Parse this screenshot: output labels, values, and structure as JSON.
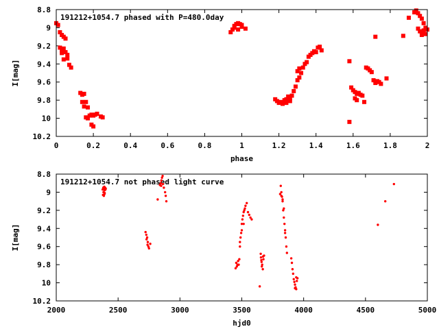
{
  "chart_data": [
    {
      "type": "scatter",
      "title": "191212+1054.7 phased with P=480.0day",
      "xlabel": "phase",
      "ylabel": "I[mag]",
      "xlim": [
        0,
        2
      ],
      "ylim": [
        10.2,
        8.8
      ],
      "y_inverted": true,
      "grid": false,
      "legend": "none",
      "marker_color": "#ff0000",
      "marker": "filled-square",
      "xticks": [
        "0",
        "0.2",
        "0.4",
        "0.6",
        "0.8",
        "1",
        "1.2",
        "1.4",
        "1.6",
        "1.8",
        "2"
      ],
      "xtick_values": [
        0,
        0.2,
        0.4,
        0.6,
        0.8,
        1.0,
        1.2,
        1.4,
        1.6,
        1.8,
        2.0
      ],
      "yticks": [
        "8.8",
        "9",
        "9.2",
        "9.4",
        "9.6",
        "9.8",
        "10",
        "10.2"
      ],
      "ytick_values": [
        8.8,
        9.0,
        9.2,
        9.4,
        9.6,
        9.8,
        10.0,
        10.2
      ],
      "series": [
        {
          "x": [
            0.0,
            0.01,
            0.02,
            0.03,
            0.04,
            0.05,
            0.02,
            0.03,
            0.04,
            0.05,
            0.06,
            0.03,
            0.04,
            0.06,
            0.07,
            0.08,
            0.13,
            0.14,
            0.15,
            0.14,
            0.16,
            0.15,
            0.17,
            0.16,
            0.18,
            0.17,
            0.19,
            0.2,
            0.21,
            0.22,
            0.24,
            0.25,
            0.19,
            0.2,
            0.17,
            0.94,
            0.95,
            0.96,
            0.97,
            0.98,
            0.99,
            1.0,
            1.02,
            0.96,
            0.98,
            1.0,
            1.18,
            1.19,
            1.2,
            1.21,
            1.22,
            1.23,
            1.24,
            1.25,
            1.26,
            1.27,
            1.22,
            1.24,
            1.26,
            1.28,
            1.29,
            1.3,
            1.31,
            1.32,
            1.33,
            1.34,
            1.35,
            1.36,
            1.37,
            1.3,
            1.31,
            1.38,
            1.39,
            1.4,
            1.41,
            1.42,
            1.43,
            1.58,
            1.59,
            1.6,
            1.61,
            1.62,
            1.63,
            1.64,
            1.65,
            1.61,
            1.62,
            1.66,
            1.67,
            1.68,
            1.69,
            1.7,
            1.71,
            1.72,
            1.73,
            1.74,
            1.75,
            1.78,
            1.72,
            1.58,
            1.87,
            1.9,
            1.93,
            1.94,
            1.95,
            1.96,
            1.97,
            1.98,
            1.99,
            2.0,
            1.95,
            1.96,
            1.97,
            1.98,
            1.99,
            1.97,
            1.98
          ],
          "y": [
            8.95,
            8.97,
            9.05,
            9.08,
            9.1,
            9.12,
            9.22,
            9.25,
            9.23,
            9.27,
            9.3,
            9.28,
            9.35,
            9.34,
            9.41,
            9.44,
            9.72,
            9.74,
            9.73,
            9.82,
            9.82,
            9.87,
            9.88,
            9.99,
            9.97,
            10.0,
            9.96,
            9.97,
            9.96,
            9.95,
            9.98,
            9.99,
            10.07,
            10.09,
            10.0,
            9.05,
            9.02,
            8.98,
            8.96,
            8.95,
            8.96,
            8.97,
            9.01,
            9.0,
            9.02,
            8.99,
            9.79,
            9.81,
            9.83,
            9.82,
            9.84,
            9.8,
            9.79,
            9.76,
            9.78,
            9.75,
            9.84,
            9.83,
            9.81,
            9.7,
            9.65,
            9.58,
            9.55,
            9.5,
            9.44,
            9.4,
            9.38,
            9.32,
            9.3,
            9.48,
            9.45,
            9.28,
            9.26,
            9.27,
            9.22,
            9.21,
            9.25,
            9.37,
            9.66,
            9.69,
            9.71,
            9.73,
            9.72,
            9.74,
            9.75,
            9.78,
            9.8,
            9.82,
            9.44,
            9.45,
            9.47,
            9.49,
            9.58,
            9.61,
            9.59,
            9.6,
            9.62,
            9.56,
            9.1,
            10.04,
            9.09,
            8.89,
            8.83,
            8.81,
            8.84,
            8.87,
            8.9,
            8.95,
            9.0,
            9.02,
            9.01,
            9.04,
            9.05,
            9.06,
            9.07,
            9.08,
            9.03
          ]
        }
      ]
    },
    {
      "type": "scatter",
      "title": "191212+1054.7 not phased light curve",
      "xlabel": "hjd0",
      "ylabel": "I[mag]",
      "xlim": [
        2000,
        5000
      ],
      "ylim": [
        10.2,
        8.8
      ],
      "y_inverted": true,
      "grid": false,
      "legend": "none",
      "marker_color": "#ff0000",
      "marker": "small-dot",
      "xticks": [
        "2000",
        "2500",
        "3000",
        "3500",
        "4000",
        "4500",
        "5000"
      ],
      "xtick_values": [
        2000,
        2500,
        3000,
        3500,
        4000,
        4500,
        5000
      ],
      "yticks": [
        "8.8",
        "9",
        "9.2",
        "9.4",
        "9.6",
        "9.8",
        "10",
        "10.2"
      ],
      "ytick_values": [
        8.8,
        9.0,
        9.2,
        9.4,
        9.6,
        9.8,
        10.0,
        10.2
      ],
      "series": [
        {
          "x": [
            2375,
            2380,
            2382,
            2385,
            2388,
            2390,
            2392,
            2395,
            2398,
            2400,
            2385,
            2390,
            2378,
            2722,
            2728,
            2735,
            2740,
            2745,
            2750,
            2760,
            2730,
            2738,
            2820,
            2838,
            2845,
            2850,
            2855,
            2860,
            2870,
            2880,
            2885,
            2890,
            2848,
            2862,
            3450,
            3460,
            3465,
            3470,
            3475,
            3480,
            3485,
            3490,
            3495,
            3500,
            3505,
            3510,
            3515,
            3520,
            3525,
            3530,
            3540,
            3550,
            3560,
            3570,
            3580,
            3455,
            3470,
            3485,
            3500,
            3515,
            3653,
            3655,
            3658,
            3660,
            3665,
            3670,
            3675,
            3680,
            3662,
            3672,
            3645,
            3810,
            3815,
            3820,
            3825,
            3830,
            3835,
            3840,
            3845,
            3850,
            3855,
            3860,
            3865,
            3820,
            3830,
            3840,
            3850,
            3900,
            3905,
            3910,
            3915,
            3920,
            3925,
            3930,
            3935,
            3940,
            3945,
            3950,
            3930,
            3940,
            4600,
            4660,
            4730
          ],
          "y": [
            8.97,
            8.95,
            9.0,
            8.96,
            8.94,
            8.98,
            9.01,
            8.95,
            8.97,
            8.96,
            9.04,
            9.02,
            9.03,
            9.44,
            9.47,
            9.5,
            9.55,
            9.6,
            9.62,
            9.57,
            9.52,
            9.58,
            9.08,
            8.92,
            8.9,
            8.87,
            8.84,
            8.82,
            8.95,
            9.0,
            9.04,
            9.1,
            8.93,
            8.91,
            9.84,
            9.82,
            9.8,
            9.76,
            9.8,
            9.74,
            9.6,
            9.5,
            9.45,
            9.35,
            9.3,
            9.26,
            9.22,
            9.2,
            9.18,
            9.15,
            9.12,
            9.22,
            9.25,
            9.28,
            9.3,
            9.78,
            9.8,
            9.55,
            9.42,
            9.35,
            9.68,
            9.72,
            9.75,
            9.77,
            9.8,
            9.85,
            9.74,
            9.7,
            9.82,
            9.71,
            10.04,
            9.02,
            8.93,
            9.0,
            9.05,
            9.1,
            9.2,
            9.28,
            9.35,
            9.42,
            9.5,
            9.6,
            9.67,
            9.04,
            9.08,
            9.18,
            9.45,
            9.73,
            9.78,
            9.85,
            9.9,
            9.96,
            9.99,
            10.02,
            10.05,
            10.07,
            9.98,
            9.95,
            10.06,
            9.94,
            9.36,
            9.1,
            8.91
          ]
        }
      ]
    }
  ]
}
